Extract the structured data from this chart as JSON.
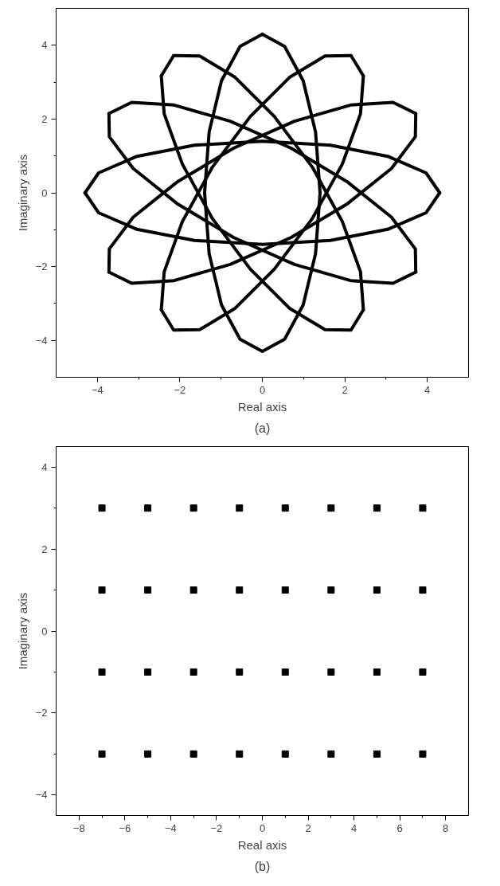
{
  "chart_data": [
    {
      "type": "line",
      "xlabel": "Real axis",
      "ylabel": "Imaginary axis",
      "annotations": [
        "(a)"
      ],
      "xlim": [
        -5,
        5
      ],
      "ylim": [
        -5,
        5
      ],
      "xticks": [
        -4,
        -2,
        0,
        2,
        4
      ],
      "yticks": [
        -4,
        -2,
        0,
        2,
        4
      ],
      "grid": false,
      "line_style": "solid",
      "series": [
        {
          "color": "#000000",
          "x": [
            4.3,
            3.97,
            3.04,
            1.65,
            0,
            -1.65,
            -3.04,
            -3.97,
            -4.3,
            -3.97,
            -3.04,
            -1.65,
            0,
            1.65,
            3.04,
            3.97,
            4.3
          ],
          "values": [
            0,
            0.54,
            0.99,
            1.29,
            1.4,
            1.29,
            0.99,
            0.54,
            0,
            -0.54,
            -0.99,
            -1.29,
            -1.4,
            -1.29,
            -0.99,
            -0.54,
            0
          ]
        },
        {
          "color": "#000000",
          "x": [
            3.72,
            3.17,
            2.14,
            0.78,
            -0.7,
            -2.07,
            -3.13,
            -3.71,
            -3.72,
            -3.17,
            -2.14,
            -0.78,
            0.7,
            2.07,
            3.13,
            3.71,
            3.72
          ],
          "values": [
            2.15,
            2.45,
            2.38,
            1.94,
            1.21,
            0.29,
            -0.66,
            -1.52,
            -2.15,
            -2.45,
            -2.38,
            -1.94,
            -1.21,
            -0.29,
            0.66,
            1.52,
            2.15
          ]
        },
        {
          "color": "#000000",
          "x": [
            2.15,
            1.52,
            0.66,
            -0.29,
            -1.21,
            -1.94,
            -2.38,
            -2.45,
            -2.15,
            -1.52,
            -0.66,
            0.29,
            1.21,
            1.94,
            2.38,
            2.45,
            2.15
          ],
          "values": [
            3.72,
            3.71,
            3.13,
            2.07,
            0.7,
            -0.78,
            -2.14,
            -3.17,
            -3.72,
            -3.71,
            -3.13,
            -2.07,
            -0.7,
            0.78,
            2.14,
            3.17,
            3.72
          ]
        },
        {
          "color": "#000000",
          "x": [
            0,
            -0.54,
            -0.99,
            -1.29,
            -1.4,
            -1.29,
            -0.99,
            -0.54,
            0,
            0.54,
            0.99,
            1.29,
            1.4,
            1.29,
            0.99,
            0.54,
            0
          ],
          "values": [
            4.3,
            3.97,
            3.04,
            1.65,
            0,
            -1.65,
            -3.04,
            -3.97,
            -4.3,
            -3.97,
            -3.04,
            -1.65,
            0,
            1.65,
            3.04,
            3.97,
            4.3
          ]
        },
        {
          "color": "#000000",
          "x": [
            -2.15,
            -1.52,
            -0.66,
            0.29,
            1.21,
            1.94,
            2.38,
            2.45,
            2.15,
            1.52,
            0.66,
            -0.29,
            -1.21,
            -1.94,
            -2.38,
            -2.45,
            -2.15
          ],
          "values": [
            3.72,
            3.71,
            3.13,
            2.07,
            0.7,
            -0.78,
            -2.14,
            -3.17,
            -3.72,
            -3.71,
            -3.13,
            -2.07,
            -0.7,
            0.78,
            2.14,
            3.17,
            3.72
          ]
        },
        {
          "color": "#000000",
          "x": [
            -3.72,
            -3.17,
            -2.14,
            -0.78,
            0.7,
            2.07,
            3.13,
            3.71,
            3.72,
            3.17,
            2.14,
            0.78,
            -0.7,
            -2.07,
            -3.13,
            -3.71,
            -3.72
          ],
          "values": [
            2.15,
            2.45,
            2.38,
            1.94,
            1.21,
            0.29,
            -0.66,
            -1.52,
            -2.15,
            -2.45,
            -2.38,
            -1.94,
            -1.21,
            -0.29,
            0.66,
            1.52,
            2.15
          ]
        }
      ]
    },
    {
      "type": "scatter",
      "xlabel": "Real axis",
      "ylabel": "Imaginary axis",
      "annotations": [
        "(b)"
      ],
      "xlim": [
        -9,
        9
      ],
      "ylim": [
        -4.5,
        4.5
      ],
      "xticks": [
        -8,
        -6,
        -4,
        -2,
        0,
        2,
        4,
        6,
        8
      ],
      "yticks": [
        -4,
        -2,
        0,
        2,
        4
      ],
      "grid": false,
      "marker": "square",
      "series": [
        {
          "color": "#000000",
          "x": [
            -7,
            -5,
            -3,
            -1,
            1,
            3,
            5,
            7
          ],
          "values": [
            3,
            3,
            3,
            3,
            3,
            3,
            3,
            3
          ]
        },
        {
          "color": "#000000",
          "x": [
            -7,
            -5,
            -3,
            -1,
            1,
            3,
            5,
            7
          ],
          "values": [
            1,
            1,
            1,
            1,
            1,
            1,
            1,
            1
          ]
        },
        {
          "color": "#000000",
          "x": [
            -7,
            -5,
            -3,
            -1,
            1,
            3,
            5,
            7
          ],
          "values": [
            -1,
            -1,
            -1,
            -1,
            -1,
            -1,
            -1,
            -1
          ]
        },
        {
          "color": "#000000",
          "x": [
            -7,
            -5,
            -3,
            -1,
            1,
            3,
            5,
            7
          ],
          "values": [
            -3,
            -3,
            -3,
            -3,
            -3,
            -3,
            -3,
            -3
          ]
        }
      ]
    }
  ]
}
